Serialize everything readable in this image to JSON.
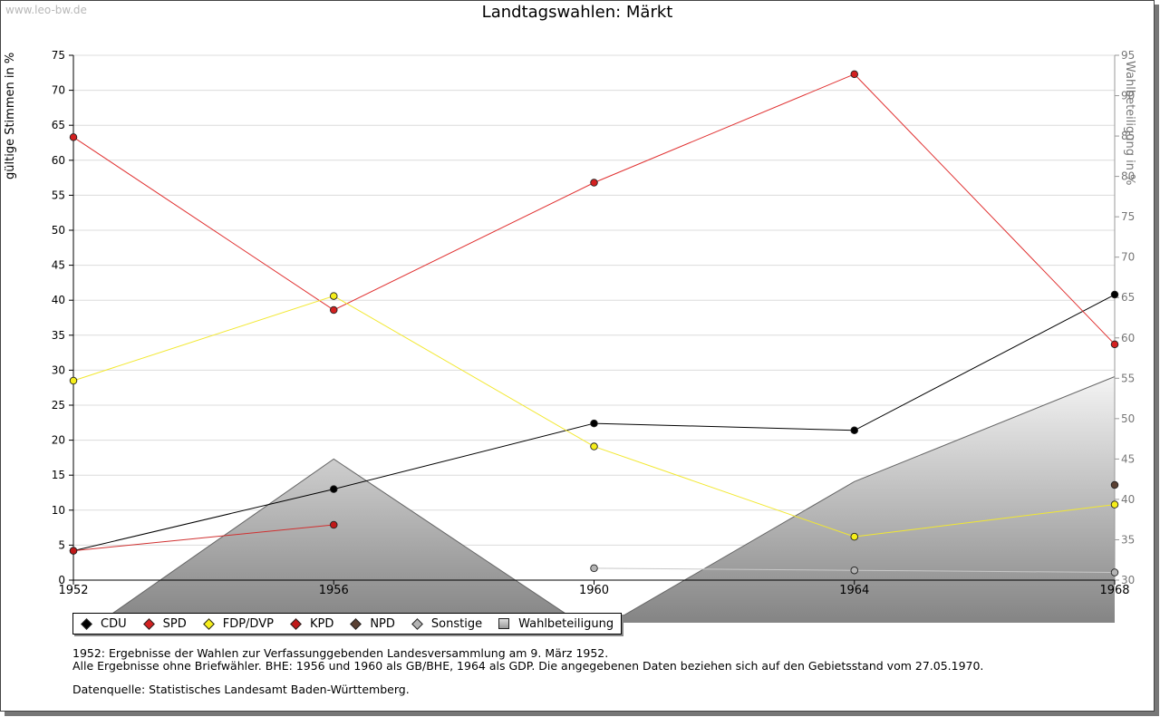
{
  "watermark": "www.leo-bw.de",
  "chart_data": {
    "type": "line",
    "title": "Landtagswahlen: Märkt",
    "ylabel": "gültige Stimmen in %",
    "y2label": "Wahlbeteiligung in %",
    "x": [
      "1952",
      "1956",
      "1960",
      "1964",
      "1968"
    ],
    "ylim": [
      0,
      75
    ],
    "yticks": [
      "0",
      "5",
      "10",
      "15",
      "20",
      "25",
      "30",
      "35",
      "40",
      "45",
      "50",
      "55",
      "60",
      "65",
      "70",
      "75"
    ],
    "y2lim": [
      30,
      95
    ],
    "y2ticks": [
      "30",
      "35",
      "40",
      "45",
      "50",
      "55",
      "60",
      "65",
      "70",
      "75",
      "80",
      "85",
      "90",
      "95"
    ],
    "grid": true,
    "legend_position": "bottom-left",
    "series": [
      {
        "name": "CDU",
        "color": "#000000",
        "line": "#000000",
        "values": [
          4.2,
          13.0,
          22.4,
          21.4,
          40.8
        ]
      },
      {
        "name": "SPD",
        "color": "#d42020",
        "line": "#e03030",
        "values": [
          63.3,
          38.6,
          56.8,
          72.3,
          33.7
        ]
      },
      {
        "name": "FDP/DVP",
        "color": "#f6ee1a",
        "line": "#f2e830",
        "values": [
          28.5,
          40.6,
          19.1,
          6.2,
          10.8
        ]
      },
      {
        "name": "KPD",
        "color": "#c01818",
        "line": "#d03030",
        "values": [
          4.2,
          7.9,
          null,
          null,
          null
        ]
      },
      {
        "name": "NPD",
        "color": "#5a4032",
        "line": "#5a4032",
        "values": [
          null,
          null,
          null,
          null,
          13.6
        ]
      },
      {
        "name": "Sonstige",
        "color": "#b4b4b4",
        "line": "#c8c8c8",
        "values": [
          null,
          null,
          1.7,
          1.4,
          1.1
        ]
      },
      {
        "name": "Wahlbeteiligung",
        "color": "#a0a0a0",
        "axis": "right",
        "type": "area",
        "values": [
          22.5,
          45.0,
          23.5,
          42.2,
          55.2
        ]
      }
    ]
  },
  "notes": {
    "line1": "1952: Ergebnisse der Wahlen zur Verfassunggebenden Landesversammlung am 9. März 1952.",
    "line2": "Alle Ergebnisse ohne Briefwähler. BHE: 1956 und 1960 als GB/BHE, 1964 als GDP. Die angegebenen Daten beziehen sich auf den Gebietsstand vom 27.05.1970.",
    "line3": "Datenquelle: Statistisches Landesamt Baden-Württemberg."
  }
}
